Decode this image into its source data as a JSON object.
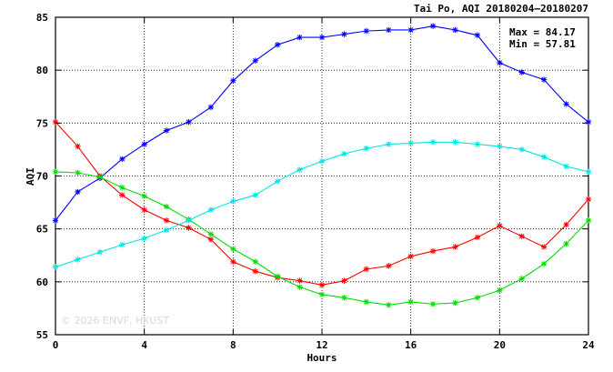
{
  "chart_data": {
    "type": "line",
    "title": "Tai Po, AQI 20180204–20180207",
    "xlabel": "Hours",
    "ylabel": "AQI",
    "xlim": [
      0,
      24
    ],
    "ylim": [
      55,
      85
    ],
    "xticks": [
      0,
      4,
      8,
      12,
      16,
      20,
      24
    ],
    "yticks": [
      55,
      60,
      65,
      70,
      75,
      80,
      85
    ],
    "grid": true,
    "stats": {
      "max": "Max = 84.17",
      "min": "Min = 57.81"
    },
    "watermark": "© 2026  ENVF, HKUST",
    "x": [
      0,
      1,
      2,
      3,
      4,
      5,
      6,
      7,
      8,
      9,
      10,
      11,
      12,
      13,
      14,
      15,
      16,
      17,
      18,
      19,
      20,
      21,
      22,
      23,
      24
    ],
    "series": [
      {
        "color": "#0000ff",
        "values": [
          65.8,
          68.5,
          69.8,
          71.6,
          73.0,
          74.3,
          75.1,
          76.5,
          79.0,
          80.9,
          82.4,
          83.1,
          83.1,
          83.4,
          83.7,
          83.8,
          83.8,
          84.17,
          83.8,
          83.3,
          80.7,
          79.8,
          79.1,
          76.8,
          75.1
        ]
      },
      {
        "color": "#ff0000",
        "values": [
          75.1,
          72.8,
          70.0,
          68.2,
          66.8,
          65.8,
          65.1,
          64.0,
          61.9,
          61.0,
          60.4,
          60.1,
          59.7,
          60.1,
          61.2,
          61.5,
          62.4,
          62.9,
          63.3,
          64.2,
          65.3,
          64.3,
          63.3,
          65.4,
          67.8
        ]
      },
      {
        "color": "#00dd00",
        "values": [
          70.4,
          70.3,
          69.9,
          68.9,
          68.1,
          67.1,
          65.9,
          64.5,
          63.1,
          61.9,
          60.5,
          59.5,
          58.8,
          58.5,
          58.1,
          57.81,
          58.1,
          57.9,
          58.0,
          58.5,
          59.2,
          60.3,
          61.7,
          63.6,
          65.8
        ]
      },
      {
        "color": "#00e5e5",
        "values": [
          61.4,
          62.1,
          62.8,
          63.5,
          64.1,
          64.9,
          65.8,
          66.8,
          67.6,
          68.2,
          69.5,
          70.6,
          71.4,
          72.1,
          72.6,
          73.0,
          73.1,
          73.2,
          73.2,
          73.0,
          72.8,
          72.5,
          71.8,
          70.9,
          70.4
        ]
      }
    ]
  }
}
